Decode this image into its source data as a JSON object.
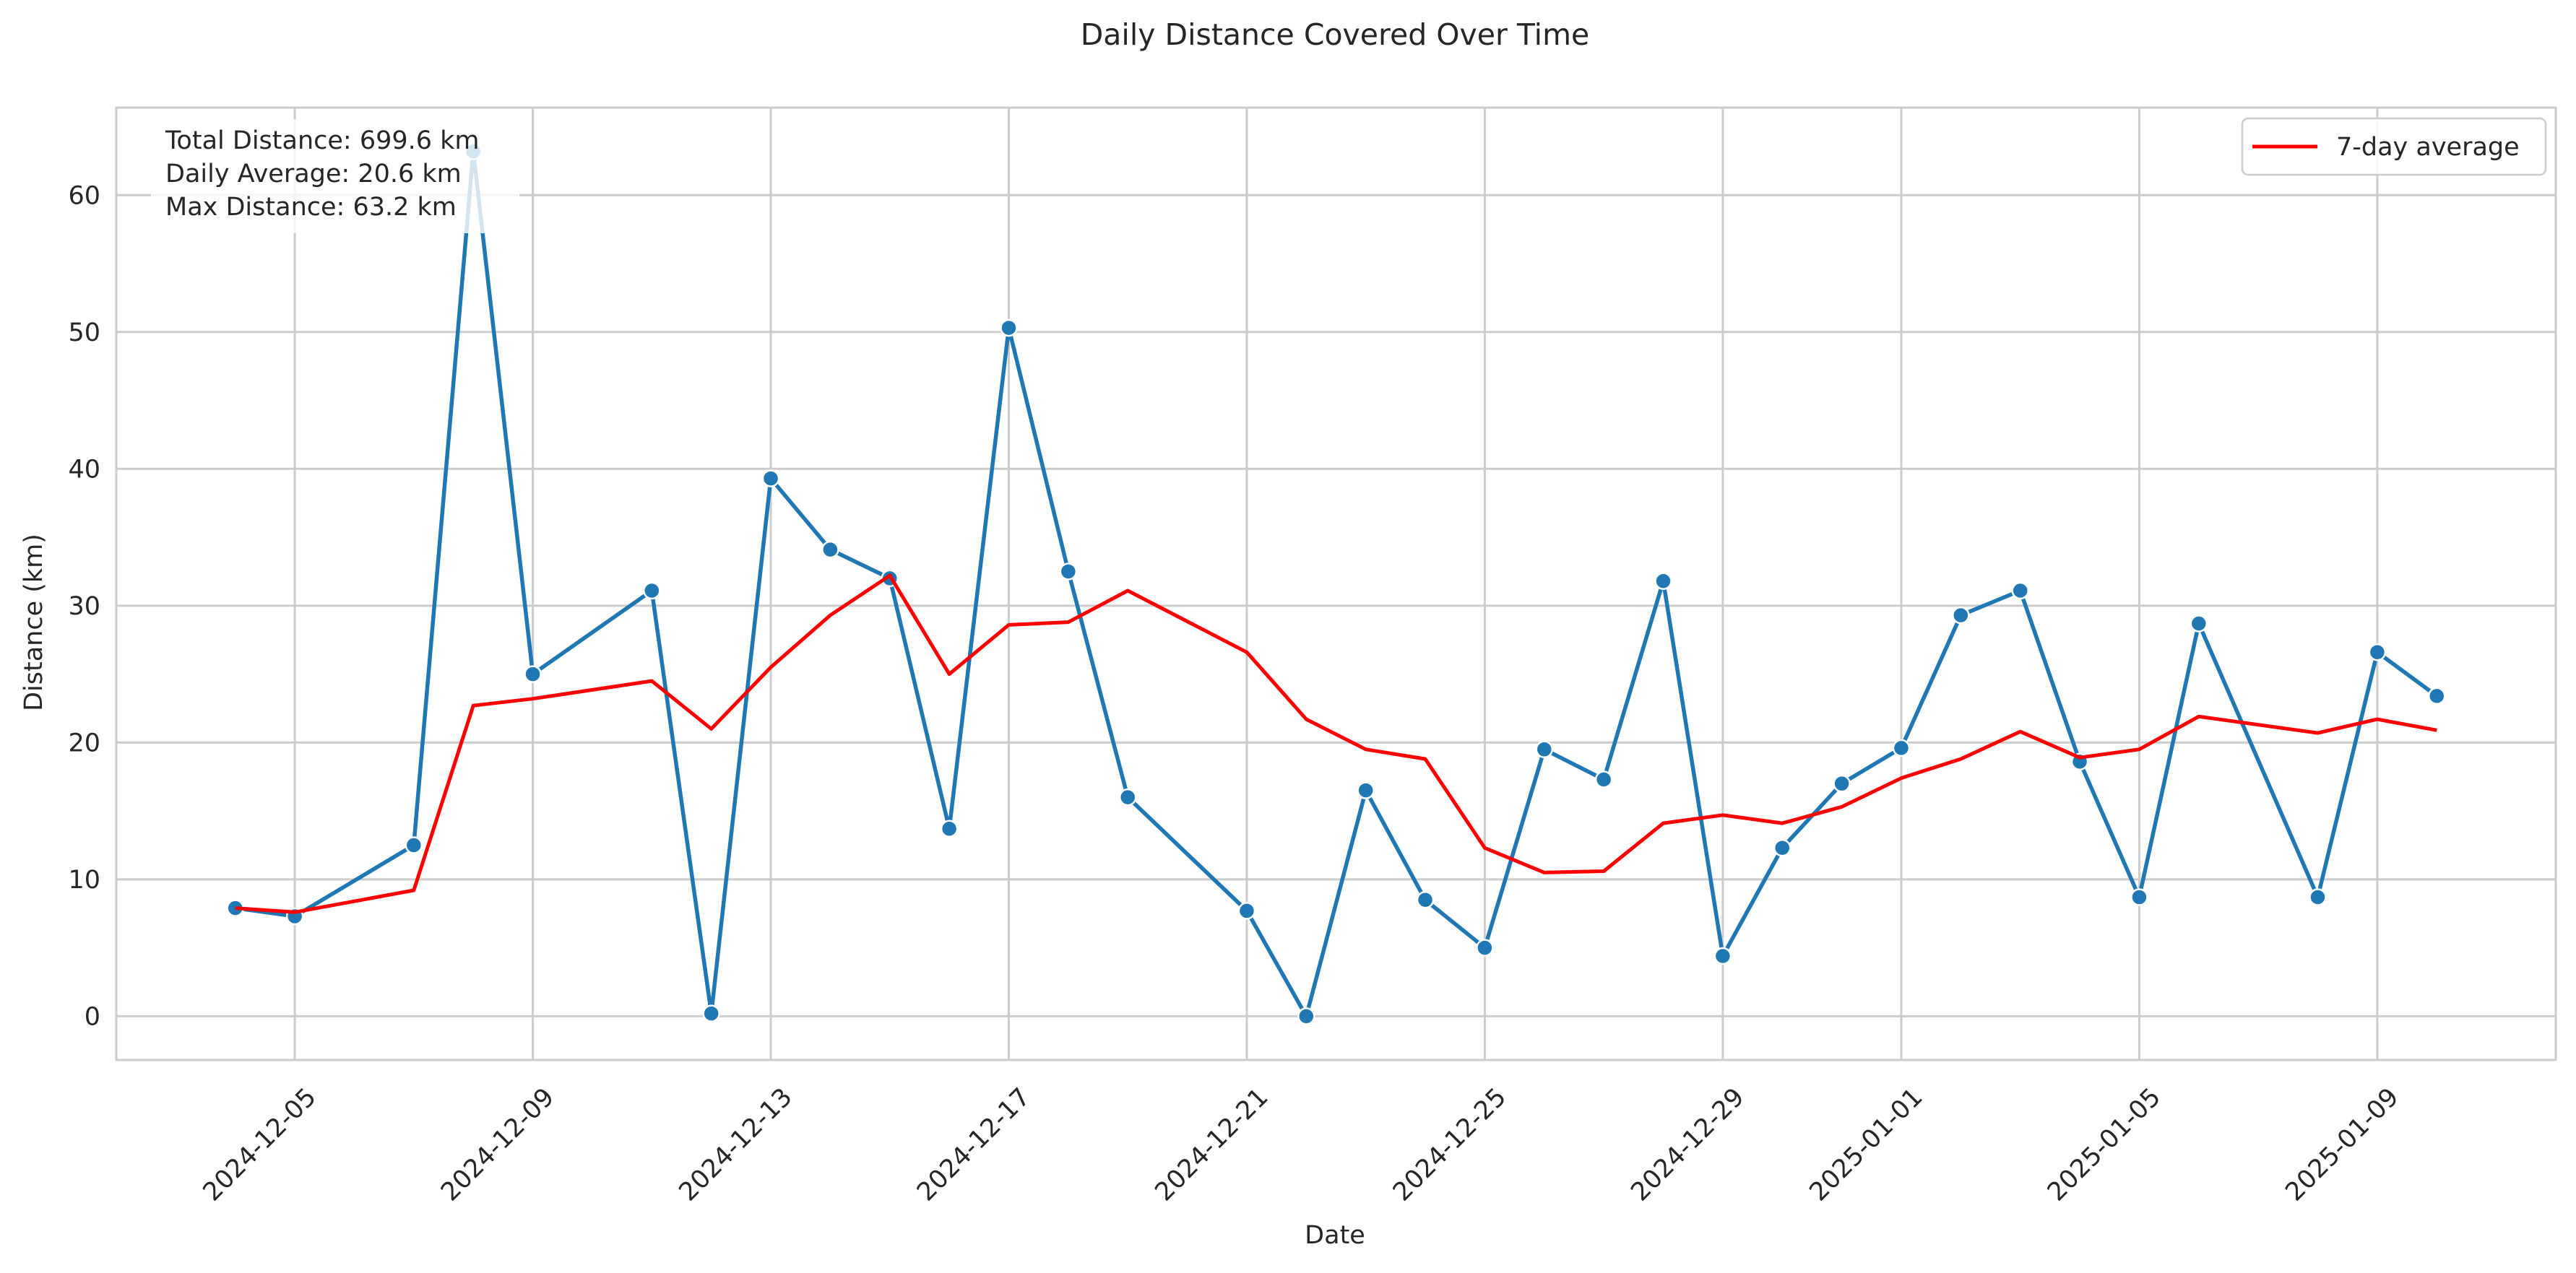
{
  "chart_data": {
    "type": "line",
    "title": "Daily Distance Covered Over Time",
    "xlabel": "Date",
    "ylabel": "Distance (km)",
    "xlim": [
      "2024-12-02",
      "2025-01-12"
    ],
    "ylim": [
      -3.2,
      66.4
    ],
    "y_ticks": [
      0,
      10,
      20,
      30,
      40,
      50,
      60
    ],
    "x_ticks": [
      "2024-12-05",
      "2024-12-09",
      "2024-12-13",
      "2024-12-17",
      "2024-12-21",
      "2024-12-25",
      "2024-12-29",
      "2025-01-01",
      "2025-01-05",
      "2025-01-09"
    ],
    "grid": true,
    "legend_position": "top-right",
    "annotations": [
      "Total Distance: 699.6 km",
      "Daily Average: 20.6 km",
      "Max Distance: 63.2 km"
    ],
    "series": [
      {
        "color": "#1f77b4",
        "marker": "circle",
        "points": [
          {
            "x": "2024-12-04",
            "y": 7.9
          },
          {
            "x": "2024-12-05",
            "y": 7.3
          },
          {
            "x": "2024-12-07",
            "y": 12.5
          },
          {
            "x": "2024-12-08",
            "y": 63.2
          },
          {
            "x": "2024-12-09",
            "y": 25.0
          },
          {
            "x": "2024-12-11",
            "y": 31.1
          },
          {
            "x": "2024-12-12",
            "y": 0.2
          },
          {
            "x": "2024-12-13",
            "y": 39.3
          },
          {
            "x": "2024-12-14",
            "y": 34.1
          },
          {
            "x": "2024-12-15",
            "y": 32.0
          },
          {
            "x": "2024-12-16",
            "y": 13.7
          },
          {
            "x": "2024-12-17",
            "y": 50.3
          },
          {
            "x": "2024-12-18",
            "y": 32.5
          },
          {
            "x": "2024-12-19",
            "y": 16.0
          },
          {
            "x": "2024-12-21",
            "y": 7.7
          },
          {
            "x": "2024-12-22",
            "y": 0.0
          },
          {
            "x": "2024-12-23",
            "y": 16.5
          },
          {
            "x": "2024-12-24",
            "y": 8.5
          },
          {
            "x": "2024-12-25",
            "y": 5.0
          },
          {
            "x": "2024-12-26",
            "y": 19.5
          },
          {
            "x": "2024-12-27",
            "y": 17.3
          },
          {
            "x": "2024-12-28",
            "y": 31.8
          },
          {
            "x": "2024-12-29",
            "y": 4.4
          },
          {
            "x": "2024-12-30",
            "y": 12.3
          },
          {
            "x": "2024-12-31",
            "y": 17.0
          },
          {
            "x": "2025-01-01",
            "y": 19.6
          },
          {
            "x": "2025-01-02",
            "y": 29.3
          },
          {
            "x": "2025-01-03",
            "y": 31.1
          },
          {
            "x": "2025-01-04",
            "y": 18.6
          },
          {
            "x": "2025-01-05",
            "y": 8.7
          },
          {
            "x": "2025-01-06",
            "y": 28.7
          },
          {
            "x": "2025-01-08",
            "y": 8.7
          },
          {
            "x": "2025-01-09",
            "y": 26.6
          },
          {
            "x": "2025-01-10",
            "y": 23.4
          }
        ]
      },
      {
        "name": "7-day average",
        "color": "#ff0000",
        "marker": "none",
        "points": [
          {
            "x": "2024-12-04",
            "y": 7.9
          },
          {
            "x": "2024-12-05",
            "y": 7.6
          },
          {
            "x": "2024-12-07",
            "y": 9.2
          },
          {
            "x": "2024-12-08",
            "y": 22.7
          },
          {
            "x": "2024-12-09",
            "y": 23.2
          },
          {
            "x": "2024-12-11",
            "y": 24.5
          },
          {
            "x": "2024-12-12",
            "y": 21.0
          },
          {
            "x": "2024-12-13",
            "y": 25.5
          },
          {
            "x": "2024-12-14",
            "y": 29.3
          },
          {
            "x": "2024-12-15",
            "y": 32.2
          },
          {
            "x": "2024-12-16",
            "y": 25.0
          },
          {
            "x": "2024-12-17",
            "y": 28.6
          },
          {
            "x": "2024-12-18",
            "y": 28.8
          },
          {
            "x": "2024-12-19",
            "y": 31.1
          },
          {
            "x": "2024-12-21",
            "y": 26.6
          },
          {
            "x": "2024-12-22",
            "y": 21.7
          },
          {
            "x": "2024-12-23",
            "y": 19.5
          },
          {
            "x": "2024-12-24",
            "y": 18.8
          },
          {
            "x": "2024-12-25",
            "y": 12.3
          },
          {
            "x": "2024-12-26",
            "y": 10.5
          },
          {
            "x": "2024-12-27",
            "y": 10.6
          },
          {
            "x": "2024-12-28",
            "y": 14.1
          },
          {
            "x": "2024-12-29",
            "y": 14.7
          },
          {
            "x": "2024-12-30",
            "y": 14.1
          },
          {
            "x": "2024-12-31",
            "y": 15.3
          },
          {
            "x": "2025-01-01",
            "y": 17.4
          },
          {
            "x": "2025-01-02",
            "y": 18.8
          },
          {
            "x": "2025-01-03",
            "y": 20.8
          },
          {
            "x": "2025-01-04",
            "y": 18.9
          },
          {
            "x": "2025-01-05",
            "y": 19.5
          },
          {
            "x": "2025-01-06",
            "y": 21.9
          },
          {
            "x": "2025-01-08",
            "y": 20.7
          },
          {
            "x": "2025-01-09",
            "y": 21.7
          },
          {
            "x": "2025-01-10",
            "y": 20.9
          }
        ]
      }
    ]
  }
}
